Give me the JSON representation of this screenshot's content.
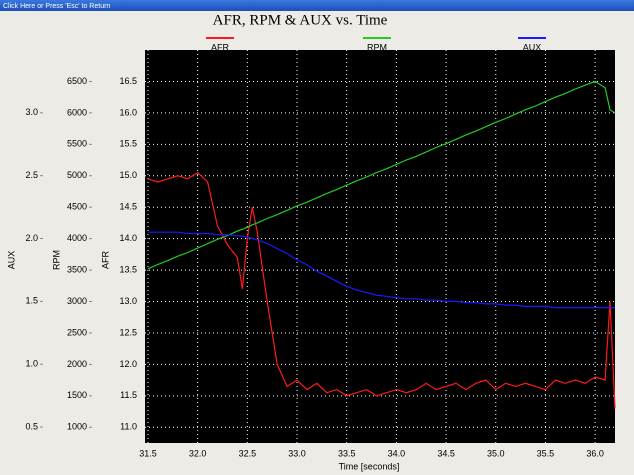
{
  "banner": "Click Here or Press 'Esc' to Return",
  "chart_data": {
    "type": "line",
    "title": "AFR, RPM & AUX vs. Time",
    "x_label": "Time [seconds]",
    "y_label": "AFR",
    "y2_label": "RPM",
    "y3_label": "AUX",
    "grid": true,
    "xlim": [
      31.47,
      36.2
    ],
    "xticks": [
      31.5,
      {
        "value": 32,
        "label": "32.0"
      },
      32.5,
      {
        "value": 33,
        "label": "33.0"
      },
      33.5,
      {
        "value": 34,
        "label": "34.0"
      },
      34.5,
      {
        "value": 35,
        "label": "35.0"
      },
      35.5,
      {
        "value": 36,
        "label": "36.0"
      }
    ],
    "ylim": [
      10.75,
      17.0
    ],
    "yticks": [
      {
        "value": 11,
        "label": "11.0"
      },
      11.5,
      {
        "value": 12,
        "label": "12.0"
      },
      12.5,
      {
        "value": 13,
        "label": "13.0"
      },
      13.5,
      {
        "value": 14,
        "label": "14.0"
      },
      14.5,
      {
        "value": 15,
        "label": "15.0"
      },
      15.5,
      {
        "value": 16,
        "label": "16.0"
      },
      16.5
    ],
    "y2lim": [
      750,
      7000
    ],
    "y2ticks": [
      1000,
      1500,
      2000,
      2500,
      3000,
      3500,
      4000,
      4500,
      5000,
      5500,
      6000,
      6500
    ],
    "y3lim": [
      0.373,
      3.5
    ],
    "y3ticks": [
      0.5,
      {
        "value": 1,
        "label": "1.0"
      },
      1.5,
      {
        "value": 2,
        "label": "2.0"
      },
      2.5,
      {
        "value": 3,
        "label": "3.0"
      }
    ],
    "x": [
      31.5,
      31.6,
      31.7,
      31.8,
      31.9,
      32.0,
      32.1,
      32.2,
      32.3,
      32.4,
      32.45,
      32.5,
      32.55,
      32.6,
      32.7,
      32.8,
      32.9,
      33.0,
      33.1,
      33.2,
      33.3,
      33.4,
      33.5,
      33.6,
      33.7,
      33.8,
      33.9,
      34.0,
      34.1,
      34.2,
      34.3,
      34.4,
      34.5,
      34.6,
      34.7,
      34.8,
      34.9,
      35.0,
      35.1,
      35.2,
      35.3,
      35.4,
      35.5,
      35.6,
      35.7,
      35.8,
      35.9,
      36.0,
      36.1,
      36.15,
      36.2
    ],
    "series": [
      {
        "name": "AFR",
        "color": "#ff1a1a",
        "axis": "y",
        "values": [
          14.95,
          14.9,
          14.95,
          15.0,
          14.95,
          15.05,
          14.9,
          14.2,
          13.9,
          13.7,
          13.2,
          14.0,
          14.5,
          14.1,
          13.0,
          12.0,
          11.65,
          11.75,
          11.6,
          11.7,
          11.55,
          11.6,
          11.5,
          11.55,
          11.6,
          11.5,
          11.55,
          11.6,
          11.55,
          11.6,
          11.7,
          11.6,
          11.65,
          11.7,
          11.6,
          11.7,
          11.75,
          11.6,
          11.7,
          11.65,
          11.7,
          11.65,
          11.6,
          11.75,
          11.7,
          11.75,
          11.7,
          11.8,
          11.75,
          13.0,
          11.3
        ]
      },
      {
        "name": "RPM",
        "color": "#22cc22",
        "axis": "y2",
        "values": [
          3520,
          3590,
          3650,
          3720,
          3780,
          3850,
          3920,
          3990,
          4050,
          4120,
          4150,
          4180,
          4220,
          4250,
          4320,
          4380,
          4450,
          4520,
          4580,
          4650,
          4720,
          4780,
          4850,
          4920,
          4980,
          5050,
          5110,
          5180,
          5250,
          5310,
          5380,
          5450,
          5510,
          5580,
          5650,
          5710,
          5780,
          5850,
          5910,
          5980,
          6050,
          6110,
          6180,
          6250,
          6310,
          6380,
          6440,
          6500,
          6400,
          6050,
          6000
        ]
      },
      {
        "name": "AUX",
        "color": "#1a1aff",
        "axis": "y3",
        "values": [
          2.05,
          2.05,
          2.05,
          2.05,
          2.04,
          2.04,
          2.04,
          2.03,
          2.03,
          2.02,
          2.02,
          2.01,
          2.0,
          1.99,
          1.96,
          1.92,
          1.88,
          1.83,
          1.79,
          1.74,
          1.7,
          1.66,
          1.62,
          1.59,
          1.57,
          1.55,
          1.54,
          1.53,
          1.52,
          1.52,
          1.51,
          1.51,
          1.5,
          1.5,
          1.49,
          1.49,
          1.48,
          1.48,
          1.47,
          1.47,
          1.46,
          1.46,
          1.46,
          1.45,
          1.45,
          1.45,
          1.45,
          1.45,
          1.45,
          1.45,
          1.45
        ]
      }
    ]
  }
}
